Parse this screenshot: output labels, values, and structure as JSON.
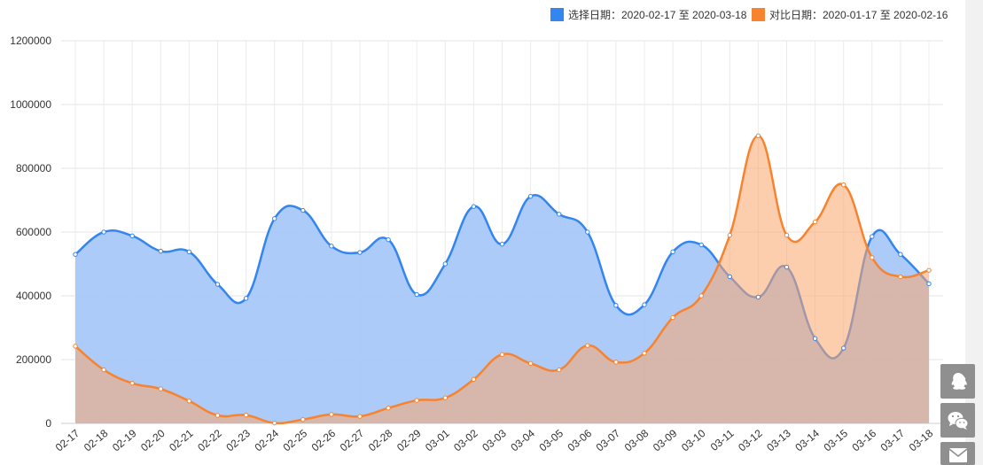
{
  "chart_data": {
    "type": "area",
    "categories": [
      "02-17",
      "02-18",
      "02-19",
      "02-20",
      "02-21",
      "02-22",
      "02-23",
      "02-24",
      "02-25",
      "02-26",
      "02-27",
      "02-28",
      "02-29",
      "03-01",
      "03-02",
      "03-03",
      "03-04",
      "03-05",
      "03-06",
      "03-07",
      "03-08",
      "03-09",
      "03-10",
      "03-11",
      "03-12",
      "03-13",
      "03-14",
      "03-15",
      "03-16",
      "03-17",
      "03-18"
    ],
    "series": [
      {
        "name": "选择日期：2020-02-17 至 2020-03-18",
        "color": "#3385ef",
        "values": [
          530000,
          600000,
          588000,
          540000,
          538000,
          436000,
          392000,
          642000,
          668000,
          556000,
          536000,
          576000,
          404000,
          500000,
          680000,
          562000,
          712000,
          656000,
          600000,
          370000,
          372000,
          538000,
          560000,
          460000,
          396000,
          490000,
          266000,
          236000,
          586000,
          530000,
          438000
        ]
      },
      {
        "name": "对比日期：2020-01-17 至 2020-02-16",
        "color": "#f7832e",
        "values": [
          242000,
          168000,
          126000,
          108000,
          70000,
          25000,
          26000,
          1000,
          12000,
          28000,
          22000,
          48000,
          72000,
          80000,
          138000,
          216000,
          188000,
          168000,
          244000,
          192000,
          220000,
          332000,
          400000,
          590000,
          902000,
          590000,
          632000,
          748000,
          520000,
          460000,
          480000
        ]
      }
    ],
    "yticks": [
      "0",
      "200000",
      "400000",
      "600000",
      "800000",
      "1000000",
      "1200000"
    ],
    "ylim": [
      0,
      1200000
    ],
    "grid": true,
    "legend_position": "top-right"
  },
  "icons": {
    "float_buttons": [
      "qq-icon",
      "wechat-icon",
      "mail-icon"
    ]
  }
}
